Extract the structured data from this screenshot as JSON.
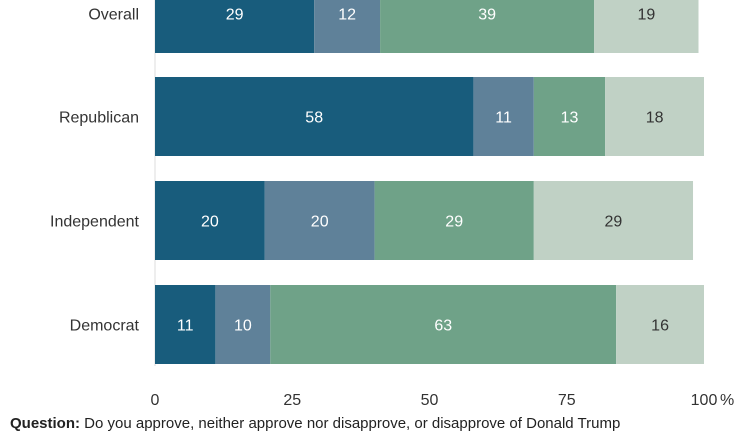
{
  "chart_data": {
    "type": "bar",
    "orientation": "horizontal",
    "stacked": true,
    "categories": [
      "Overall",
      "Republican",
      "Independent",
      "Democrat"
    ],
    "series": [
      {
        "values": [
          29,
          58,
          20,
          11
        ],
        "color": "#185c7c",
        "label_color": "#ffffff"
      },
      {
        "values": [
          12,
          11,
          20,
          10
        ],
        "color": "#5f8199",
        "label_color": "#ffffff"
      },
      {
        "values": [
          39,
          13,
          29,
          63
        ],
        "color": "#6fa288",
        "label_color": "#ffffff"
      },
      {
        "values": [
          19,
          18,
          29,
          16
        ],
        "color": "#c0d1c5",
        "label_color": "#333333"
      }
    ],
    "xlim": [
      0,
      100
    ],
    "x_ticks": [
      0,
      25,
      50,
      75,
      100
    ],
    "x_tick_labels": [
      "0",
      "25",
      "50",
      "75",
      "100"
    ],
    "x_unit": "%",
    "grid": false
  },
  "footer": {
    "question_label": "Question:",
    "question_text": "Do you approve, neither approve nor disapprove, or disapprove of Donald Trump"
  }
}
